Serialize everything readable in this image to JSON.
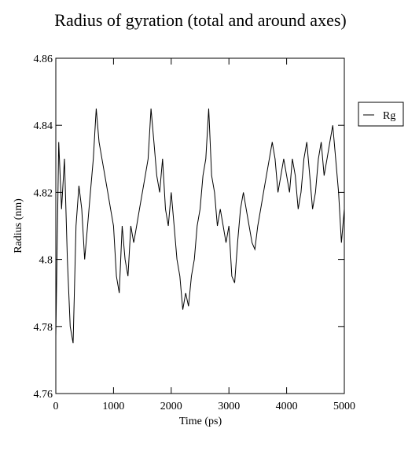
{
  "chart_data": {
    "type": "line",
    "title": "Radius of gyration (total and around axes)",
    "x_label": "Time (ps)",
    "y_label": "Radius (nm)",
    "x": [
      0,
      50,
      100,
      150,
      200,
      250,
      300,
      350,
      400,
      450,
      500,
      550,
      600,
      650,
      700,
      750,
      800,
      850,
      900,
      950,
      1000,
      1050,
      1100,
      1150,
      1200,
      1250,
      1300,
      1350,
      1400,
      1450,
      1500,
      1550,
      1600,
      1650,
      1700,
      1750,
      1800,
      1850,
      1900,
      1950,
      2000,
      2050,
      2100,
      2150,
      2200,
      2250,
      2300,
      2350,
      2400,
      2450,
      2500,
      2550,
      2600,
      2650,
      2700,
      2750,
      2800,
      2850,
      2900,
      2950,
      3000,
      3050,
      3100,
      3150,
      3200,
      3250,
      3300,
      3350,
      3400,
      3450,
      3500,
      3550,
      3600,
      3650,
      3700,
      3750,
      3800,
      3850,
      3900,
      3950,
      4000,
      4050,
      4100,
      4150,
      4200,
      4250,
      4300,
      4350,
      4400,
      4450,
      4500,
      4550,
      4600,
      4650,
      4700,
      4750,
      4800,
      4850,
      4900,
      4950,
      5000
    ],
    "series": [
      {
        "name": "Rg",
        "color": "#000000",
        "values": [
          4.777,
          4.835,
          4.815,
          4.83,
          4.8,
          4.78,
          4.775,
          4.81,
          4.822,
          4.815,
          4.8,
          4.81,
          4.82,
          4.83,
          4.845,
          4.835,
          4.83,
          4.825,
          4.82,
          4.815,
          4.81,
          4.795,
          4.79,
          4.81,
          4.8,
          4.795,
          4.81,
          4.805,
          4.81,
          4.815,
          4.82,
          4.825,
          4.83,
          4.845,
          4.835,
          4.825,
          4.82,
          4.83,
          4.815,
          4.81,
          4.82,
          4.81,
          4.8,
          4.795,
          4.785,
          4.79,
          4.786,
          4.795,
          4.8,
          4.81,
          4.815,
          4.825,
          4.83,
          4.845,
          4.825,
          4.82,
          4.81,
          4.815,
          4.81,
          4.805,
          4.81,
          4.795,
          4.793,
          4.805,
          4.815,
          4.82,
          4.815,
          4.81,
          4.805,
          4.803,
          4.81,
          4.815,
          4.82,
          4.825,
          4.83,
          4.835,
          4.83,
          4.82,
          4.825,
          4.83,
          4.825,
          4.82,
          4.83,
          4.825,
          4.815,
          4.82,
          4.83,
          4.835,
          4.825,
          4.815,
          4.82,
          4.83,
          4.835,
          4.825,
          4.83,
          4.835,
          4.84,
          4.83,
          4.82,
          4.805,
          4.815
        ]
      }
    ],
    "xlim": [
      0,
      5000
    ],
    "xticks": [
      0,
      1000,
      2000,
      3000,
      4000,
      5000
    ],
    "ylim": [
      4.76,
      4.86
    ],
    "yticks": [
      4.76,
      4.78,
      4.8,
      4.82,
      4.84,
      4.86
    ],
    "legend": "upper right outside"
  }
}
